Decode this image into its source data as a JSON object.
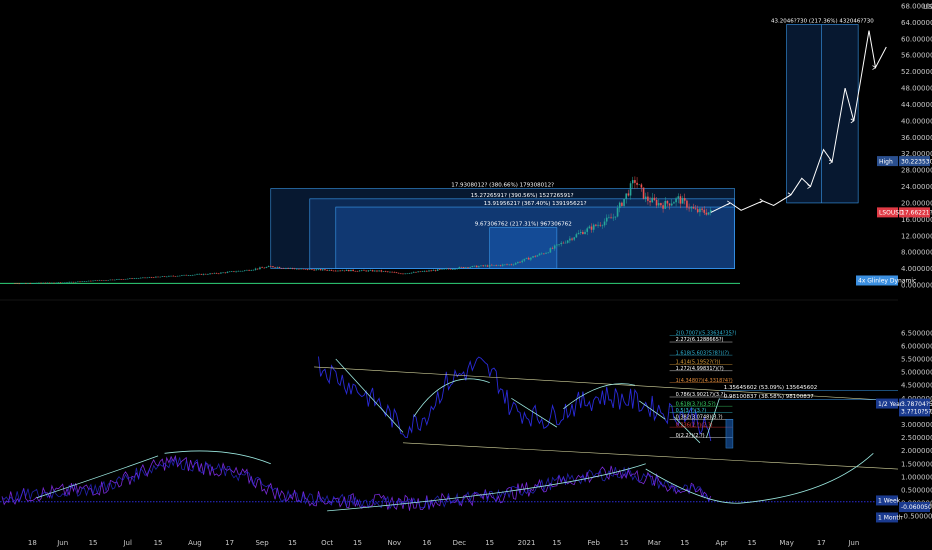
{
  "chart_data": [
    {
      "type": "candlestick",
      "currency": "USD",
      "ylim": [
        0,
        68
      ],
      "y_ticks": [
        "68.0000000",
        "64.0000000",
        "60.0000000",
        "56.0000000",
        "52.0000000",
        "48.0000000",
        "44.0000000",
        "40.0000000",
        "36.0000000",
        "32.0000000",
        "28.0000000",
        "24.0000000",
        "20.0000000",
        "16.0000000",
        "12.0000000",
        "8.0000000",
        "4.0000000",
        "0.0000000"
      ],
      "y_tick_values": [
        68,
        64,
        60,
        56,
        52,
        48,
        44,
        40,
        36,
        32,
        28,
        24,
        20,
        16,
        12,
        8,
        4,
        0
      ],
      "price_path": [
        [
          "2020-05-10",
          0.4
        ],
        [
          "2020-06-01",
          0.6
        ],
        [
          "2020-06-20",
          1.2
        ],
        [
          "2020-07-10",
          1.8
        ],
        [
          "2020-07-25",
          2.3
        ],
        [
          "2020-08-10",
          2.8
        ],
        [
          "2020-08-25",
          3.6
        ],
        [
          "2020-09-05",
          4.5
        ],
        [
          "2020-09-20",
          3.8
        ],
        [
          "2020-10-05",
          3.6
        ],
        [
          "2020-10-25",
          3.4
        ],
        [
          "2020-11-05",
          2.8
        ],
        [
          "2020-11-20",
          3.6
        ],
        [
          "2020-12-05",
          4.4
        ],
        [
          "2020-12-25",
          5.0
        ],
        [
          "2021-01-10",
          8.0
        ],
        [
          "2021-01-25",
          12.5
        ],
        [
          "2021-02-10",
          16.5
        ],
        [
          "2021-02-20",
          25.5
        ],
        [
          "2021-02-25",
          21.0
        ],
        [
          "2021-03-05",
          19.5
        ],
        [
          "2021-03-12",
          21.0
        ],
        [
          "2021-03-20",
          18.0
        ],
        [
          "2021-03-27",
          17.7
        ]
      ],
      "projection_path": [
        [
          "2021-03-27",
          17.7
        ],
        [
          "2021-04-05",
          20.0
        ],
        [
          "2021-04-10",
          18.2
        ],
        [
          "2021-04-20",
          20.5
        ],
        [
          "2021-04-25",
          19.4
        ],
        [
          "2021-05-03",
          22.0
        ],
        [
          "2021-05-08",
          26.0
        ],
        [
          "2021-05-12",
          24.0
        ],
        [
          "2021-05-18",
          33.0
        ],
        [
          "2021-05-22",
          30.0
        ],
        [
          "2021-05-28",
          48.0
        ],
        [
          "2021-06-01",
          40.0
        ],
        [
          "2021-06-08",
          62.0
        ],
        [
          "2021-06-11",
          53.0
        ],
        [
          "2021-06-16",
          58.0
        ]
      ],
      "measure_boxes": [
        {
          "label": "17.9308012? (380.66%) 179308012?",
          "from_date": "2020-09-05",
          "to_date": "2021-04-07",
          "low": 4.0,
          "high": 23.5
        },
        {
          "label": "15.2726591? (390.56%) 152726591?",
          "from_date": "2020-09-23",
          "to_date": "2021-04-07",
          "low": 4.0,
          "high": 21.0
        },
        {
          "label": "13.9195621? (367.40%) 139195621?",
          "from_date": "2020-10-05",
          "to_date": "2021-04-07",
          "low": 4.0,
          "high": 19.0
        },
        {
          "label": "9.67306762 (217.31%) 967306762",
          "from_date": "2020-12-15",
          "to_date": "2021-01-15",
          "low": 4.0,
          "high": 14.0
        },
        {
          "label": "43.2046?730 (217.36%) 432046?730",
          "from_date": "2021-05-01",
          "to_date": "2021-06-03",
          "low": 20.0,
          "high": 63.5
        }
      ],
      "price_tags": [
        {
          "label": "High",
          "value": "30.2235304?",
          "y": 30.2,
          "color": "#2a4f8f"
        },
        {
          "label": "LSOUSD",
          "value": "17.66221?0",
          "y": 17.7,
          "color": "#e03a45"
        }
      ],
      "indicator_tag": {
        "label": "4x Glinley Dynamic",
        "color": "#3b8fe0"
      }
    },
    {
      "type": "line",
      "ylim": [
        -0.8,
        6.8
      ],
      "y_ticks": [
        "6.50000000",
        "6.00000000",
        "5.50000000",
        "5.00000000",
        "4.50000000",
        "4.00000000",
        "3.50000000",
        "3.00000000",
        "2.50000000",
        "2.00000000",
        "1.50000000",
        "1.00000000",
        "0.50000000",
        "0.00000000",
        "-0.50000000"
      ],
      "y_tick_values": [
        6.5,
        6.0,
        5.5,
        5.0,
        4.5,
        4.0,
        3.5,
        3.0,
        2.5,
        2.0,
        1.5,
        1.0,
        0.5,
        0.0,
        -0.5
      ],
      "top_tick": "6.00000000",
      "tags": [
        {
          "label": "1/2 Year",
          "value": "3.78704?5",
          "y": 3.8
        },
        {
          "label": "",
          "value": "3.7?10?5?",
          "y": 3.5
        },
        {
          "label": "1 Week",
          "value": "",
          "y": 0.1
        },
        {
          "label": "",
          "value": "-0.06005008",
          "y": -0.15
        },
        {
          "label": "1 Month",
          "value": "",
          "y": -0.55
        }
      ],
      "fib_levels": [
        {
          "label": "2(0.7007)(5.33634?35?)",
          "y": 6.4,
          "color": "#2fb3d3"
        },
        {
          "label": "2.272(6.1288665?)",
          "y": 6.15,
          "color": "#ffffff"
        },
        {
          "label": "1.618(5.603?5?8?)(?)",
          "y": 5.65,
          "color": "#2fb3d3"
        },
        {
          "label": "1.414(5.1952?(?))",
          "y": 5.3,
          "color": "#e0a23b"
        },
        {
          "label": "1.272(4.99831?)(?)",
          "y": 5.05,
          "color": "#ffffff"
        },
        {
          "label": "1(4.3480?)(4.3318?4?)",
          "y": 4.6,
          "color": "#e08a3b"
        },
        {
          "label": "0.786(3.9021?)(3.?)",
          "y": 4.05,
          "color": "#ffffff"
        },
        {
          "label": "0.618(3.?)(3.5?)",
          "y": 3.7,
          "color": "#3be06d"
        },
        {
          "label": "0.5(3.?)(3.?)",
          "y": 3.45,
          "color": "#3bd3e0"
        },
        {
          "label": "0.382(3.0748)(3.?)",
          "y": 3.2,
          "color": "#ffffff"
        },
        {
          "label": "0.236(2.?)(2.?)",
          "y": 2.9,
          "color": "#e03a3a"
        },
        {
          "label": "0(2.2?)(2.?)",
          "y": 2.5,
          "color": "#ffffff"
        }
      ],
      "annotations": [
        {
          "label": "1.35645602 (53.09%) 135645602",
          "y": 4.3
        },
        {
          "label": "0.98100837 (38.58%) 98100837",
          "y": 3.95
        }
      ]
    }
  ],
  "time_axis": {
    "labels": [
      "18",
      "Jun",
      "15",
      "Jul",
      "15",
      "Aug",
      "17",
      "Sep",
      "15",
      "Oct",
      "15",
      "Nov",
      "16",
      "Dec",
      "15",
      "2021",
      "15",
      "Feb",
      "15",
      "Mar",
      "15",
      "Apr",
      "15",
      "May",
      "17",
      "Jun"
    ],
    "dates": [
      "2020-05-18",
      "2020-06-01",
      "2020-06-15",
      "2020-07-01",
      "2020-07-15",
      "2020-08-01",
      "2020-08-17",
      "2020-09-01",
      "2020-09-15",
      "2020-10-01",
      "2020-10-15",
      "2020-11-01",
      "2020-11-16",
      "2020-12-01",
      "2020-12-15",
      "2021-01-01",
      "2021-01-15",
      "2021-02-01",
      "2021-02-15",
      "2021-03-01",
      "2021-03-15",
      "2021-04-01",
      "2021-04-15",
      "2021-05-01",
      "2021-05-17",
      "2021-06-01"
    ]
  },
  "colors": {
    "background": "#000000",
    "candle_up": "#26a69a",
    "candle_down": "#ef5350",
    "box_fill": "#1e6fd9",
    "box_stroke": "#3a9bf0",
    "projection": "#ffffff",
    "indicator_blue": "#2a2ad8",
    "indicator_purple": "#7a2ad8",
    "curve": "#9be8e0",
    "baseline_green": "#2fd37a",
    "axis_text": "#c8c8c8"
  }
}
